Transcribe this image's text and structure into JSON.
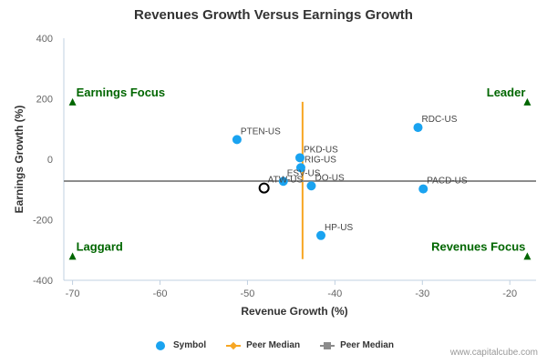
{
  "chart_data": {
    "type": "scatter",
    "title": "Revenues Growth Versus Earnings Growth",
    "xlabel": "Revenue Growth (%)",
    "ylabel": "Earnings Growth (%)",
    "xlim": [
      -71,
      -17
    ],
    "ylim": [
      -400,
      400
    ],
    "x_ticks": [
      -70,
      -60,
      -50,
      -40,
      -30,
      -20
    ],
    "y_ticks": [
      -400,
      -200,
      0,
      200,
      400
    ],
    "grid": false,
    "series": [
      {
        "name": "Symbol",
        "color": "#1aa3f0",
        "points": [
          {
            "label": "PTEN-US",
            "x": -51.2,
            "y": 65
          },
          {
            "label": "RDC-US",
            "x": -30.5,
            "y": 105
          },
          {
            "label": "PKD-US",
            "x": -44.0,
            "y": 5
          },
          {
            "label": "RIG-US",
            "x": -43.9,
            "y": -28
          },
          {
            "label": "ESV-US",
            "x": -45.9,
            "y": -73
          },
          {
            "label": "DO-US",
            "x": -42.7,
            "y": -88
          },
          {
            "label": "PACD-US",
            "x": -29.9,
            "y": -98
          },
          {
            "label": "HP-US",
            "x": -41.6,
            "y": -252
          }
        ]
      },
      {
        "name": "ATW-US",
        "color": "#000000",
        "points": [
          {
            "label": "ATW-US",
            "x": -48.1,
            "y": -95
          }
        ]
      }
    ],
    "peer_median_revenue": {
      "name": "Peer Median",
      "x": -43.7,
      "y_range": [
        -330,
        190
      ],
      "color": "#f7a623"
    },
    "peer_median_earnings": {
      "name": "Peer Median",
      "y": -72,
      "x_range": [
        -71,
        -17
      ],
      "color": "#8c8c8c"
    },
    "quadrants": {
      "top_left": "Earnings Focus",
      "top_right": "Leader",
      "bottom_left": "Laggard",
      "bottom_right": "Revenues Focus",
      "color": "#006600"
    }
  },
  "legend": {
    "symbol": "Symbol",
    "peer_median_1": "Peer Median",
    "peer_median_2": "Peer Median"
  },
  "watermark": "www.capitalcube.com"
}
